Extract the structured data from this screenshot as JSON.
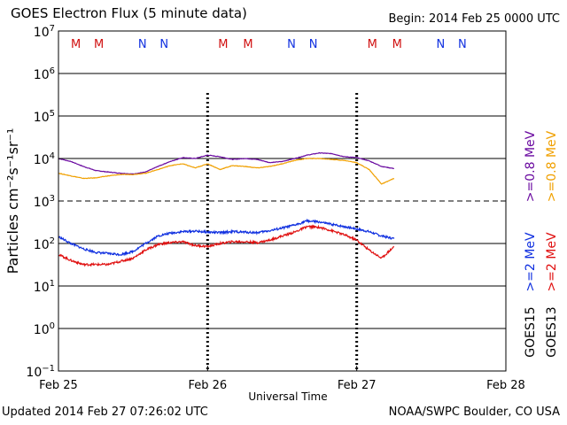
{
  "header": {
    "title": "GOES Electron Flux (5 minute data)",
    "begin": "Begin: 2014 Feb 25 0000 UTC"
  },
  "footer": {
    "updated": "Updated 2014 Feb 27 07:26:02 UTC",
    "credit": "NOAA/SWPC Boulder, CO USA"
  },
  "colors": {
    "goes15_high": "#6a0aa0",
    "goes13_high": "#f0a000",
    "goes15_low": "#1030e0",
    "goes13_low": "#e01010",
    "moon_m": "#d01010",
    "moon_n": "#1030e0"
  },
  "chart_data": {
    "type": "line",
    "xlabel": "Universal Time",
    "ylabel": "Particles cm⁻²s⁻¹sr⁻¹",
    "y_scale": "log",
    "ylim": [
      0.1,
      10000000
    ],
    "xlim": [
      0,
      72
    ],
    "x_units": "hours since 2014 Feb 25 0000 UTC",
    "x_ticks": [
      {
        "x": 0,
        "label": "Feb 25"
      },
      {
        "x": 24,
        "label": "Feb 26"
      },
      {
        "x": 48,
        "label": "Feb 27"
      },
      {
        "x": 72,
        "label": "Feb 28"
      }
    ],
    "y_ticks": [
      {
        "exp": 7,
        "label": "10",
        "sup": "7"
      },
      {
        "exp": 6,
        "label": "10",
        "sup": "6"
      },
      {
        "exp": 5,
        "label": "10",
        "sup": "5"
      },
      {
        "exp": 4,
        "label": "10",
        "sup": "4"
      },
      {
        "exp": 3,
        "label": "10",
        "sup": "3"
      },
      {
        "exp": 2,
        "label": "10",
        "sup": "2"
      },
      {
        "exp": 1,
        "label": "10",
        "sup": "1"
      },
      {
        "exp": 0,
        "label": "10",
        "sup": "0"
      },
      {
        "exp": -1,
        "label": "10",
        "sup": "−1"
      }
    ],
    "threshold_lines": [
      1000
    ],
    "midnight_markers": [
      24,
      48
    ],
    "moon_markers": [
      {
        "x": 2.8,
        "label": "M",
        "key": "M"
      },
      {
        "x": 6.5,
        "label": "M",
        "key": "M"
      },
      {
        "x": 13.5,
        "label": "N",
        "key": "N"
      },
      {
        "x": 17.0,
        "label": "N",
        "key": "N"
      },
      {
        "x": 26.5,
        "label": "M",
        "key": "M"
      },
      {
        "x": 30.5,
        "label": "M",
        "key": "M"
      },
      {
        "x": 37.5,
        "label": "N",
        "key": "N"
      },
      {
        "x": 41.0,
        "label": "N",
        "key": "N"
      },
      {
        "x": 50.5,
        "label": "M",
        "key": "M"
      },
      {
        "x": 54.5,
        "label": "M",
        "key": "M"
      },
      {
        "x": 61.5,
        "label": "N",
        "key": "N"
      },
      {
        "x": 65.0,
        "label": "N",
        "key": "N"
      }
    ],
    "legend_placement": "right",
    "legend": [
      {
        "sat": "GOES15",
        "label": ">=0.8 MeV",
        "color_key": "goes15_high"
      },
      {
        "sat": "GOES13",
        "label": ">=0.8 MeV",
        "color_key": "goes13_high"
      },
      {
        "sat": "GOES15",
        "label": ">=2 MeV",
        "color_key": "goes15_low"
      },
      {
        "sat": "GOES13",
        "label": ">=2 MeV",
        "color_key": "goes13_low"
      }
    ],
    "series": [
      {
        "name": "GOES15 >=0.8 MeV",
        "color_key": "goes15_high",
        "x": [
          0,
          2,
          4,
          6,
          8,
          10,
          12,
          14,
          16,
          18,
          20,
          22,
          24,
          26,
          28,
          30,
          32,
          34,
          36,
          38,
          40,
          42,
          44,
          46,
          48,
          50,
          52,
          54
        ],
        "y": [
          10000,
          8500,
          6500,
          5200,
          4800,
          4500,
          4300,
          4800,
          6500,
          8500,
          10500,
          10000,
          12000,
          11000,
          9500,
          10000,
          9500,
          8000,
          8500,
          10000,
          12000,
          13500,
          13000,
          11000,
          10500,
          8800,
          6500,
          5800
        ]
      },
      {
        "name": "GOES13 >=0.8 MeV",
        "color_key": "goes13_high",
        "x": [
          0,
          2,
          4,
          6,
          8,
          10,
          12,
          14,
          16,
          18,
          20,
          22,
          24,
          26,
          28,
          30,
          32,
          34,
          36,
          38,
          40,
          42,
          44,
          46,
          48,
          50,
          52,
          54
        ],
        "y": [
          4500,
          3900,
          3400,
          3500,
          3900,
          4200,
          4200,
          4500,
          5500,
          6800,
          7500,
          6000,
          7500,
          5500,
          6800,
          6500,
          6000,
          6500,
          7500,
          9000,
          10000,
          10000,
          9500,
          9000,
          8000,
          5500,
          2500,
          3400
        ]
      },
      {
        "name": "GOES15 >=2 MeV",
        "color_key": "goes15_low",
        "x": [
          0,
          2,
          4,
          6,
          8,
          10,
          12,
          14,
          16,
          18,
          20,
          22,
          24,
          26,
          28,
          30,
          32,
          34,
          36,
          38,
          40,
          42,
          44,
          46,
          48,
          50,
          52,
          54
        ],
        "y": [
          145,
          100,
          75,
          62,
          58,
          55,
          65,
          100,
          150,
          175,
          190,
          195,
          185,
          180,
          190,
          185,
          180,
          200,
          230,
          270,
          340,
          320,
          280,
          250,
          220,
          190,
          150,
          130
        ]
      },
      {
        "name": "GOES13 >=2 MeV",
        "color_key": "goes13_low",
        "x": [
          0,
          2,
          4,
          6,
          8,
          10,
          12,
          14,
          16,
          18,
          20,
          22,
          24,
          26,
          28,
          30,
          32,
          34,
          36,
          38,
          40,
          42,
          44,
          46,
          48,
          50,
          52,
          54
        ],
        "y": [
          55,
          40,
          32,
          32,
          32,
          38,
          45,
          70,
          95,
          105,
          110,
          90,
          85,
          100,
          110,
          110,
          105,
          120,
          150,
          185,
          250,
          240,
          200,
          160,
          120,
          70,
          45,
          85
        ]
      }
    ]
  }
}
